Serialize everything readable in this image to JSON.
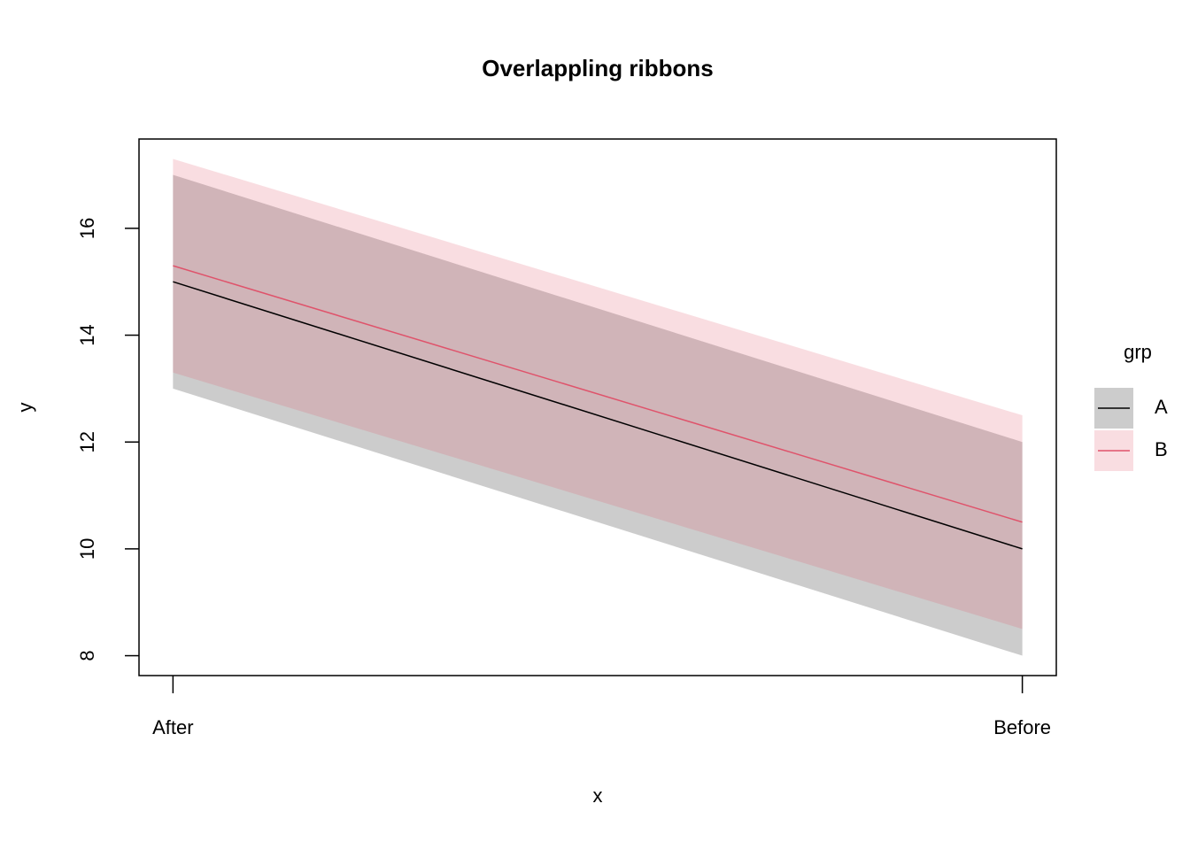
{
  "chart_data": {
    "type": "ribbon",
    "title": "Overlappling ribbons",
    "x_label": "x",
    "y_label": "y",
    "legend_title": "grp",
    "categories": [
      "After",
      "Before"
    ],
    "series": [
      {
        "name": "A",
        "color": "#000000",
        "values": [
          15,
          10
        ],
        "lower": [
          13,
          8
        ],
        "upper": [
          17,
          12
        ]
      },
      {
        "name": "B",
        "color": "#DF536B",
        "values": [
          15.3,
          10.5
        ],
        "lower": [
          13.3,
          8.5
        ],
        "upper": [
          17.3,
          12.5
        ]
      }
    ],
    "band_opacity": 0.2,
    "ylim": [
      7.628,
      17.672
    ],
    "yticks": [
      8,
      10,
      12,
      14,
      16
    ]
  }
}
